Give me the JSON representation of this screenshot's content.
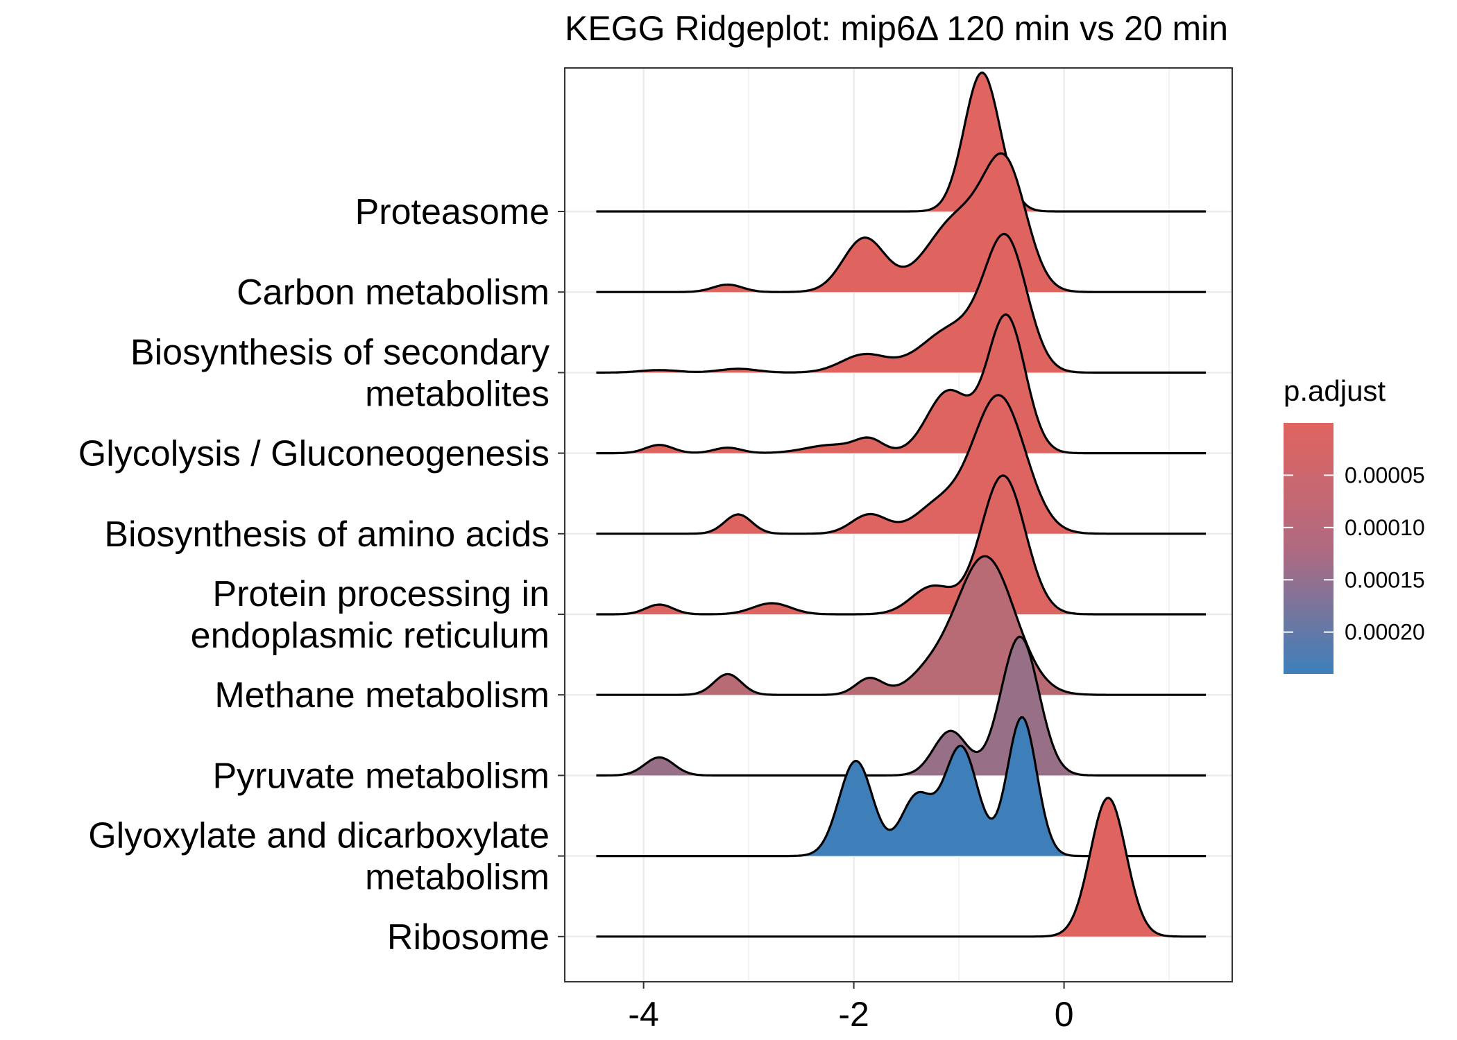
{
  "chart_data": {
    "type": "ridgeline",
    "title": "KEGG Ridgeplot: mip6Δ 120 min vs 20 min",
    "xlabel": "",
    "ylabel": "",
    "xlim": [
      -4.75,
      1.6
    ],
    "x_ticks": [
      "-4",
      "-2",
      "0"
    ],
    "x_tick_values": [
      -4,
      -2,
      0
    ],
    "grid": true,
    "colors": {
      "low_padjust": "#E0645F",
      "high_padjust": "#3C80BB",
      "line": "#000000",
      "grid": "#ebebeb"
    },
    "legend": {
      "title": "p.adjust",
      "position": "right",
      "min": 0,
      "max": 0.00024,
      "ticks": [
        "0.00005",
        "0.00010",
        "0.00015",
        "0.00020"
      ],
      "tick_values": [
        5e-05,
        0.0001,
        0.00015,
        0.0002
      ]
    },
    "x_range": [
      -4.45,
      1.35
    ],
    "series": [
      {
        "name": "Ribosome",
        "label_lines": [
          "Ribosome"
        ],
        "p_adjust": 8e-07,
        "components": [
          {
            "mu": 0.42,
            "sd": 0.17,
            "w": 1.0
          }
        ]
      },
      {
        "name": "Glyoxylate and dicarboxylate metabolism",
        "label_lines": [
          "Glyoxylate and dicarboxylate",
          "metabolism"
        ],
        "p_adjust": 0.000235,
        "components": [
          {
            "mu": -1.98,
            "sd": 0.16,
            "w": 0.48
          },
          {
            "mu": -1.4,
            "sd": 0.15,
            "w": 0.3
          },
          {
            "mu": -0.98,
            "sd": 0.16,
            "w": 0.55
          },
          {
            "mu": -0.4,
            "sd": 0.14,
            "w": 0.7
          }
        ]
      },
      {
        "name": "Pyruvate metabolism",
        "label_lines": [
          "Pyruvate metabolism"
        ],
        "p_adjust": 0.000107,
        "components": [
          {
            "mu": -3.85,
            "sd": 0.14,
            "w": 0.13
          },
          {
            "mu": -1.08,
            "sd": 0.16,
            "w": 0.32
          },
          {
            "mu": -0.42,
            "sd": 0.18,
            "w": 1.0
          }
        ]
      },
      {
        "name": "Methane metabolism",
        "label_lines": [
          "Methane metabolism"
        ],
        "p_adjust": 5.8e-05,
        "components": [
          {
            "mu": -3.2,
            "sd": 0.13,
            "w": 0.15
          },
          {
            "mu": -1.85,
            "sd": 0.13,
            "w": 0.12
          },
          {
            "mu": -0.75,
            "sd": 0.28,
            "w": 1.0
          },
          {
            "mu": -1.3,
            "sd": 0.2,
            "w": 0.12
          }
        ]
      },
      {
        "name": "Protein processing in endoplasmic reticulum",
        "label_lines": [
          "Protein processing in",
          "endoplasmic reticulum"
        ],
        "p_adjust": 6e-06,
        "components": [
          {
            "mu": -3.85,
            "sd": 0.13,
            "w": 0.07
          },
          {
            "mu": -2.78,
            "sd": 0.18,
            "w": 0.08
          },
          {
            "mu": -1.25,
            "sd": 0.2,
            "w": 0.2
          },
          {
            "mu": -0.58,
            "sd": 0.21,
            "w": 1.0
          }
        ]
      },
      {
        "name": "Biosynthesis of amino acids",
        "label_lines": [
          "Biosynthesis of amino acids"
        ],
        "p_adjust": 4e-06,
        "components": [
          {
            "mu": -3.1,
            "sd": 0.13,
            "w": 0.14
          },
          {
            "mu": -1.85,
            "sd": 0.17,
            "w": 0.14
          },
          {
            "mu": -1.2,
            "sd": 0.22,
            "w": 0.2
          },
          {
            "mu": -0.62,
            "sd": 0.25,
            "w": 1.0
          }
        ]
      },
      {
        "name": "Glycolysis / Gluconeogenesis",
        "label_lines": [
          "Glycolysis / Gluconeogenesis"
        ],
        "p_adjust": 3e-06,
        "components": [
          {
            "mu": -3.85,
            "sd": 0.13,
            "w": 0.06
          },
          {
            "mu": -3.2,
            "sd": 0.13,
            "w": 0.04
          },
          {
            "mu": -2.2,
            "sd": 0.25,
            "w": 0.06
          },
          {
            "mu": -1.85,
            "sd": 0.13,
            "w": 0.09
          },
          {
            "mu": -1.1,
            "sd": 0.2,
            "w": 0.45
          },
          {
            "mu": -0.55,
            "sd": 0.18,
            "w": 1.0
          }
        ]
      },
      {
        "name": "Biosynthesis of secondary metabolites",
        "label_lines": [
          "Biosynthesis of secondary",
          "metabolites"
        ],
        "p_adjust": 2e-06,
        "components": [
          {
            "mu": -3.85,
            "sd": 0.18,
            "w": 0.02
          },
          {
            "mu": -3.1,
            "sd": 0.18,
            "w": 0.03
          },
          {
            "mu": -1.9,
            "sd": 0.22,
            "w": 0.14
          },
          {
            "mu": -1.05,
            "sd": 0.3,
            "w": 0.35
          },
          {
            "mu": -0.55,
            "sd": 0.2,
            "w": 1.0
          }
        ]
      },
      {
        "name": "Carbon metabolism",
        "label_lines": [
          "Carbon metabolism"
        ],
        "p_adjust": 2e-06,
        "components": [
          {
            "mu": -3.2,
            "sd": 0.14,
            "w": 0.05
          },
          {
            "mu": -1.9,
            "sd": 0.2,
            "w": 0.36
          },
          {
            "mu": -1.0,
            "sd": 0.3,
            "w": 0.5
          },
          {
            "mu": -0.55,
            "sd": 0.2,
            "w": 0.75
          }
        ]
      },
      {
        "name": "Proteasome",
        "label_lines": [
          "Proteasome"
        ],
        "p_adjust": 5e-07,
        "components": [
          {
            "mu": -0.78,
            "sd": 0.17,
            "w": 1.0
          }
        ]
      }
    ]
  }
}
